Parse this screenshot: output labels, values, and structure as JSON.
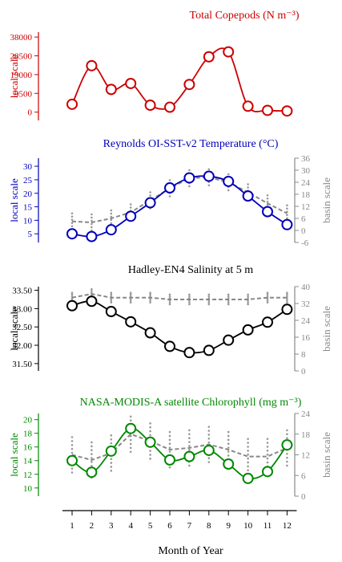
{
  "figure": {
    "xlabel": "Month of Year",
    "months": [
      "1",
      "2",
      "3",
      "4",
      "5",
      "6",
      "7",
      "8",
      "9",
      "10",
      "11",
      "12"
    ]
  },
  "chart_data": [
    {
      "type": "line",
      "title": "Total Copepods (N m⁻³)",
      "color": "#cc0000",
      "ylabel_left": "local scale",
      "ylabel_right": "",
      "left_ticks": [
        "0",
        "9500",
        "19000",
        "28500",
        "38000"
      ],
      "left_ylim": [
        -4200,
        40500
      ],
      "right_ticks": [],
      "x": [
        1,
        2,
        3,
        4,
        5,
        6,
        7,
        8,
        9,
        10,
        11,
        12
      ],
      "series": [
        {
          "values": [
            4000,
            23500,
            11500,
            14500,
            3500,
            2500,
            14000,
            28000,
            30500,
            3000,
            900,
            600
          ]
        }
      ]
    },
    {
      "type": "line",
      "title": "Reynolds OI-SST-v2 Temperature (°C)",
      "color": "#0000bb",
      "basin_color": "#888888",
      "ylabel_left": "local scale",
      "ylabel_right": "basin scale",
      "left_ticks": [
        "5",
        "10",
        "15",
        "20",
        "25",
        "30"
      ],
      "left_ylim": [
        1.8,
        33
      ],
      "right_ticks": [
        "-6",
        "0",
        "6",
        "12",
        "18",
        "24",
        "30",
        "36"
      ],
      "right_ylim": [
        -6,
        36
      ],
      "x": [
        1,
        2,
        3,
        4,
        5,
        6,
        7,
        8,
        9,
        10,
        11,
        12
      ],
      "series": [
        {
          "values": [
            5.0,
            4.0,
            6.5,
            11.5,
            16.5,
            22.0,
            25.7,
            26.3,
            24.4,
            19.0,
            13.2,
            8.4
          ]
        }
      ],
      "basin_series": {
        "values": [
          4.5,
          4.0,
          6.0,
          9.0,
          15.0,
          21.0,
          26.0,
          26.5,
          24.0,
          19.0,
          13.5,
          8.5
        ],
        "scale": "right"
      }
    },
    {
      "type": "line",
      "title": "Hadley-EN4 Salinity at 5 m",
      "color": "#000000",
      "basin_color": "#888888",
      "ylabel_left": "local scale",
      "ylabel_right": "basin scale",
      "left_ticks": [
        "31.50",
        "32.00",
        "32.50",
        "33.00",
        "33.50"
      ],
      "left_ylim": [
        31.3,
        33.6
      ],
      "right_ticks": [
        "0",
        "8",
        "16",
        "24",
        "32",
        "40"
      ],
      "right_ylim": [
        0,
        40
      ],
      "x": [
        1,
        2,
        3,
        4,
        5,
        6,
        7,
        8,
        9,
        10,
        11,
        12
      ],
      "series": [
        {
          "values": [
            33.08,
            33.2,
            32.92,
            32.64,
            32.34,
            31.97,
            31.8,
            31.86,
            32.14,
            32.42,
            32.63,
            32.98
          ]
        }
      ],
      "basin_series": {
        "values": [
          33.3,
          33.4,
          33.3,
          33.3,
          33.3,
          33.25,
          33.25,
          33.25,
          33.25,
          33.25,
          33.3,
          33.3
        ],
        "scale": "left"
      }
    },
    {
      "type": "line",
      "title": "NASA-MODIS-A satellite Chlorophyll (mg m⁻³)",
      "color": "#008800",
      "basin_color": "#888888",
      "ylabel_left": "local scale",
      "ylabel_right": "basin scale",
      "left_ticks": [
        "10",
        "12",
        "14",
        "16",
        "18",
        "20"
      ],
      "left_ylim": [
        8.8,
        20.9
      ],
      "right_ticks": [
        "0",
        "6",
        "12",
        "18",
        "24"
      ],
      "right_ylim": [
        0,
        24
      ],
      "x": [
        1,
        2,
        3,
        4,
        5,
        6,
        7,
        8,
        9,
        10,
        11,
        12
      ],
      "series": [
        {
          "values": [
            14.0,
            12.3,
            15.4,
            18.7,
            16.7,
            14.1,
            14.6,
            15.5,
            13.5,
            11.4,
            12.4,
            16.3
          ]
        }
      ],
      "basin_series": {
        "values": [
          12.0,
          10.5,
          12.5,
          18.0,
          16.0,
          13.5,
          14.0,
          15.0,
          13.5,
          11.5,
          11.5,
          14.0
        ],
        "scale": "right"
      }
    }
  ]
}
